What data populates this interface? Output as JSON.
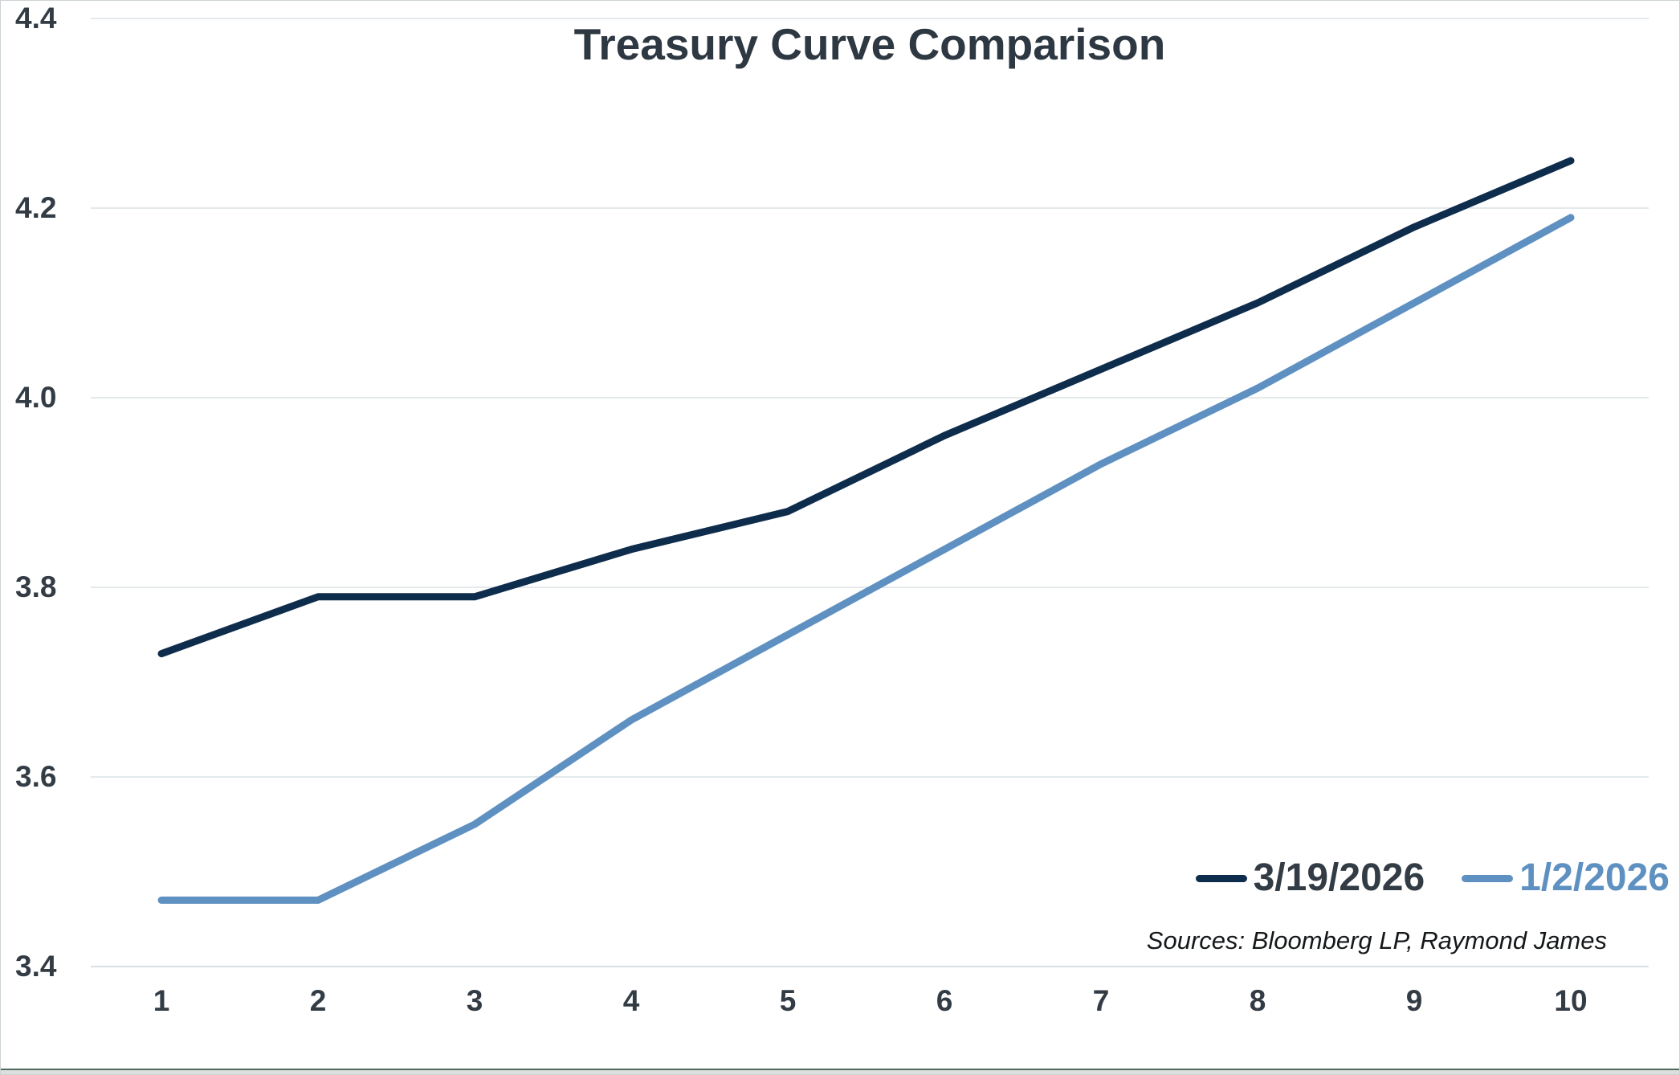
{
  "chart_data": {
    "type": "line",
    "title": "Treasury Curve Comparison",
    "categories": [
      1,
      2,
      3,
      4,
      5,
      6,
      7,
      8,
      9,
      10
    ],
    "series": [
      {
        "name": "3/19/2026",
        "color": "#0e2c4c",
        "values": [
          3.73,
          3.79,
          3.79,
          3.84,
          3.88,
          3.96,
          4.03,
          4.1,
          4.18,
          4.25
        ]
      },
      {
        "name": "1/2/2026",
        "color": "#5e90c1",
        "values": [
          3.47,
          3.47,
          3.55,
          3.66,
          3.75,
          3.84,
          3.93,
          4.01,
          4.1,
          4.19
        ]
      }
    ],
    "xlabel": "",
    "ylabel": "",
    "ylim": [
      3.4,
      4.4
    ],
    "yticks": [
      3.4,
      3.6,
      3.8,
      4.0,
      4.2,
      4.4
    ],
    "ytick_labels": [
      "3.4",
      "3.6",
      "3.8",
      "4.0",
      "4.2",
      "4.4"
    ],
    "xtick_labels": [
      "1",
      "2",
      "3",
      "4",
      "5",
      "6",
      "7",
      "8",
      "9",
      "10"
    ],
    "grid": "horizontal",
    "legend_position": "inside-bottom-right",
    "source_note": "Sources: Bloomberg LP, Raymond James"
  },
  "colors": {
    "title_text": "#2d3842",
    "tick_text": "#333c45",
    "legend_dark_text": "#333c45",
    "gridline": "#e4e9ec",
    "bottom_axis_line": "#d9dfe2",
    "page_border": "#cdd2d5",
    "bottom_strip_line": "#4e6a5a",
    "bottom_strip_bg": "#dbdfde"
  }
}
